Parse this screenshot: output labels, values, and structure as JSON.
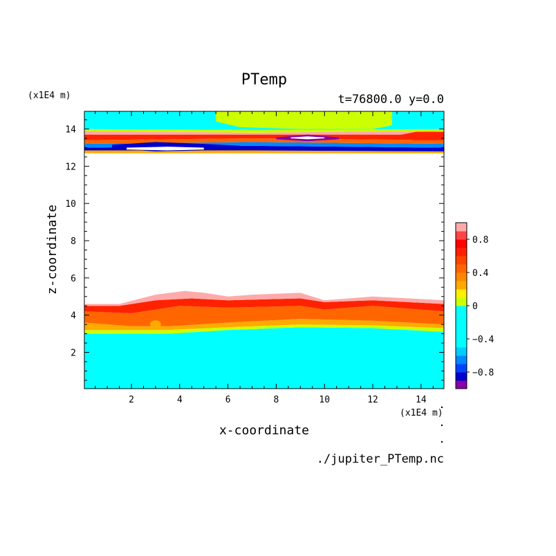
{
  "chart_data": {
    "type": "heatmap",
    "title": "PTemp",
    "subtitle": "t=76800.0 y=0.0",
    "xlabel": "x-coordinate",
    "ylabel": "z-coordinate",
    "x_unit": "(x1E4 m)",
    "y_unit": "(x1E4 m)",
    "xlim": [
      0.05,
      14.95
    ],
    "ylim": [
      0.05,
      14.95
    ],
    "xticks": [
      2,
      4,
      6,
      8,
      10,
      12,
      14
    ],
    "yticks": [
      2,
      4,
      6,
      8,
      10,
      12,
      14
    ],
    "source": "./jupiter_PTemp.nc",
    "colorbar": {
      "ticks": [
        "0.8",
        "0.4",
        "0",
        "−0.4",
        "−0.8"
      ],
      "tick_values": [
        0.8,
        0.4,
        0,
        -0.4,
        -0.8
      ],
      "levels": [
        -1.0,
        -0.9,
        -0.8,
        -0.7,
        -0.6,
        -0.5,
        -0.4,
        -0.3,
        -0.2,
        -0.1,
        0.0,
        0.1,
        0.2,
        0.3,
        0.4,
        0.5,
        0.6,
        0.7,
        0.8,
        0.9,
        1.0
      ],
      "colors": [
        "#8800aa",
        "#0000cc",
        "#0044ff",
        "#0088ff",
        "#00ccff",
        "#00ffff",
        "#00ffff",
        "#00ffff",
        "#00ffff",
        "#00ffff",
        "#ccff00",
        "#ffee00",
        "#ffaa00",
        "#ff8800",
        "#ff6600",
        "#ff4400",
        "#ff2200",
        "#ff0000",
        "#ff4444",
        "#ffaaaa"
      ]
    },
    "regions": [
      {
        "name": "lower-cyan",
        "value": -0.3,
        "color": "#00ffff",
        "lower": [
          [
            0.05,
            0.05
          ],
          [
            14.95,
            0.05
          ]
        ],
        "upper": [
          [
            0.05,
            3.0
          ],
          [
            2,
            3.0
          ],
          [
            3.5,
            3.0
          ],
          [
            6,
            3.2
          ],
          [
            9,
            3.35
          ],
          [
            12,
            3.3
          ],
          [
            14.95,
            3.1
          ]
        ]
      },
      {
        "name": "lower-yellow",
        "value": 0.05,
        "color": "#ccff00",
        "lower": [
          [
            0.05,
            3.0
          ],
          [
            2,
            3.0
          ],
          [
            3.5,
            3.0
          ],
          [
            6,
            3.2
          ],
          [
            9,
            3.35
          ],
          [
            12,
            3.3
          ],
          [
            14.95,
            3.1
          ]
        ],
        "upper": [
          [
            0.05,
            3.2
          ],
          [
            2,
            3.2
          ],
          [
            3.5,
            3.2
          ],
          [
            6,
            3.35
          ],
          [
            9,
            3.5
          ],
          [
            12,
            3.45
          ],
          [
            14.95,
            3.3
          ]
        ]
      },
      {
        "name": "lower-orange",
        "value": 0.4,
        "color": "#ffaa00",
        "lower": [
          [
            0.05,
            3.2
          ],
          [
            2,
            3.2
          ],
          [
            3.5,
            3.2
          ],
          [
            6,
            3.35
          ],
          [
            9,
            3.5
          ],
          [
            12,
            3.45
          ],
          [
            14.95,
            3.3
          ]
        ],
        "upper": [
          [
            0.05,
            3.6
          ],
          [
            2,
            3.4
          ],
          [
            3.5,
            3.4
          ],
          [
            6,
            3.6
          ],
          [
            9,
            3.8
          ],
          [
            12,
            3.7
          ],
          [
            14.95,
            3.5
          ]
        ]
      },
      {
        "name": "lower-darkorange",
        "value": 0.55,
        "color": "#ff6600",
        "lower": [
          [
            0.05,
            3.6
          ],
          [
            2,
            3.4
          ],
          [
            3.5,
            3.4
          ],
          [
            6,
            3.6
          ],
          [
            9,
            3.8
          ],
          [
            12,
            3.7
          ],
          [
            14.95,
            3.5
          ]
        ],
        "upper": [
          [
            0.05,
            4.2
          ],
          [
            2,
            4.1
          ],
          [
            4,
            4.5
          ],
          [
            6,
            4.4
          ],
          [
            9,
            4.5
          ],
          [
            10,
            4.3
          ],
          [
            12,
            4.5
          ],
          [
            14.95,
            4.2
          ]
        ]
      },
      {
        "name": "lower-red",
        "value": 0.8,
        "color": "#ff2200",
        "lower": [
          [
            0.05,
            4.2
          ],
          [
            2,
            4.1
          ],
          [
            4,
            4.5
          ],
          [
            6,
            4.4
          ],
          [
            9,
            4.5
          ],
          [
            10,
            4.3
          ],
          [
            12,
            4.5
          ],
          [
            14.95,
            4.2
          ]
        ],
        "upper": [
          [
            0.05,
            4.5
          ],
          [
            1.5,
            4.5
          ],
          [
            3,
            4.8
          ],
          [
            4.5,
            4.9
          ],
          [
            6,
            4.8
          ],
          [
            9,
            4.9
          ],
          [
            10,
            4.7
          ],
          [
            12,
            4.8
          ],
          [
            14.95,
            4.6
          ]
        ]
      },
      {
        "name": "lower-pink",
        "value": 0.95,
        "color": "#ffaaaa",
        "lower": [
          [
            0.05,
            4.5
          ],
          [
            1.5,
            4.5
          ],
          [
            3,
            4.8
          ],
          [
            4.5,
            4.9
          ],
          [
            6,
            4.8
          ],
          [
            9,
            4.9
          ],
          [
            10,
            4.7
          ],
          [
            12,
            4.8
          ],
          [
            14.95,
            4.6
          ]
        ],
        "upper": [
          [
            0.05,
            4.6
          ],
          [
            1.5,
            4.6
          ],
          [
            3,
            5.1
          ],
          [
            4.2,
            5.3
          ],
          [
            5,
            5.2
          ],
          [
            6,
            5.0
          ],
          [
            7,
            5.1
          ],
          [
            9,
            5.2
          ],
          [
            10,
            4.8
          ],
          [
            12,
            5.0
          ],
          [
            14.95,
            4.8
          ]
        ]
      },
      {
        "name": "upper-band-1",
        "value": 0.4,
        "color": "#ffaa00",
        "lower": [
          [
            0.05,
            12.7
          ],
          [
            14.95,
            12.7
          ]
        ],
        "upper": [
          [
            0.05,
            12.85
          ],
          [
            7,
            12.85
          ],
          [
            14.95,
            12.8
          ]
        ]
      },
      {
        "name": "upper-band-2",
        "value": -0.7,
        "color": "#0000cc",
        "lower": [
          [
            0.05,
            12.85
          ],
          [
            7,
            12.85
          ],
          [
            14.95,
            12.8
          ]
        ],
        "upper": [
          [
            0.05,
            13.0
          ],
          [
            7,
            13.1
          ],
          [
            14.95,
            13.0
          ]
        ]
      },
      {
        "name": "upper-band-3",
        "value": -0.5,
        "color": "#0088ff",
        "lower": [
          [
            0.05,
            13.0
          ],
          [
            7,
            13.1
          ],
          [
            14.95,
            13.0
          ]
        ],
        "upper": [
          [
            0.05,
            13.2
          ],
          [
            7,
            13.3
          ],
          [
            14.95,
            13.2
          ]
        ]
      },
      {
        "name": "upper-band-4",
        "value": 0.6,
        "color": "#ff6600",
        "lower": [
          [
            0.05,
            13.2
          ],
          [
            7,
            13.3
          ],
          [
            14.95,
            13.2
          ]
        ],
        "upper": [
          [
            0.05,
            13.4
          ],
          [
            7,
            13.5
          ],
          [
            14.95,
            13.4
          ]
        ]
      },
      {
        "name": "upper-band-5",
        "value": 0.8,
        "color": "#ff2200",
        "lower": [
          [
            0.05,
            13.4
          ],
          [
            7,
            13.5
          ],
          [
            14.95,
            13.4
          ]
        ],
        "upper": [
          [
            0.05,
            13.7
          ],
          [
            7,
            13.7
          ],
          [
            14.95,
            13.7
          ]
        ]
      },
      {
        "name": "upper-band-6",
        "value": 0.95,
        "color": "#ffaaaa",
        "lower": [
          [
            0.05,
            13.7
          ],
          [
            7,
            13.7
          ],
          [
            14.95,
            13.7
          ]
        ],
        "upper": [
          [
            0.05,
            13.9
          ],
          [
            7,
            13.8
          ],
          [
            14.95,
            13.9
          ]
        ]
      },
      {
        "name": "upper-band-7",
        "value": 0.05,
        "color": "#ccff00",
        "lower": [
          [
            0.05,
            13.9
          ],
          [
            7,
            13.8
          ],
          [
            14.95,
            13.9
          ]
        ],
        "upper": [
          [
            0.05,
            14.0
          ],
          [
            7,
            13.95
          ],
          [
            14.95,
            14.0
          ]
        ]
      },
      {
        "name": "upper-cyan",
        "value": -0.3,
        "color": "#00ffff",
        "lower": [
          [
            0.05,
            14.0
          ],
          [
            7,
            13.95
          ],
          [
            14.95,
            14.0
          ]
        ],
        "upper": [
          [
            0.05,
            14.95
          ],
          [
            14.95,
            14.95
          ]
        ]
      },
      {
        "name": "upper-yellow-patch",
        "value": 0.05,
        "color": "#ccff00",
        "lower": [
          [
            5.5,
            14.4
          ],
          [
            6.5,
            14.1
          ],
          [
            9,
            14.0
          ],
          [
            12,
            14.0
          ],
          [
            12.8,
            14.2
          ]
        ],
        "upper": [
          [
            5.5,
            14.95
          ],
          [
            12.8,
            14.95
          ]
        ]
      },
      {
        "name": "upper-deep-blue",
        "value": -0.8,
        "color": "#0000cc",
        "lower": [
          [
            1.2,
            12.95
          ],
          [
            3,
            12.8
          ],
          [
            5,
            12.85
          ],
          [
            6.5,
            13.0
          ]
        ],
        "upper": [
          [
            1.2,
            13.15
          ],
          [
            3,
            13.3
          ],
          [
            5,
            13.2
          ],
          [
            6.5,
            13.1
          ]
        ]
      },
      {
        "name": "upper-white-1",
        "value": -1.0,
        "color": "#ffffff",
        "lower": [
          [
            1.8,
            12.9
          ],
          [
            3.5,
            12.85
          ],
          [
            5,
            12.9
          ]
        ],
        "upper": [
          [
            1.8,
            13.0
          ],
          [
            3.5,
            13.05
          ],
          [
            5,
            13.0
          ]
        ]
      },
      {
        "name": "upper-purple",
        "value": -0.95,
        "color": "#8800aa",
        "lower": [
          [
            8,
            13.45
          ],
          [
            9.3,
            13.35
          ],
          [
            10.6,
            13.45
          ]
        ],
        "upper": [
          [
            8,
            13.55
          ],
          [
            9.3,
            13.7
          ],
          [
            10.6,
            13.55
          ]
        ]
      },
      {
        "name": "upper-white-2",
        "value": -1.0,
        "color": "#ffffff",
        "lower": [
          [
            8.6,
            13.5
          ],
          [
            9.3,
            13.45
          ],
          [
            10.0,
            13.5
          ]
        ],
        "upper": [
          [
            8.6,
            13.55
          ],
          [
            9.3,
            13.6
          ],
          [
            10.0,
            13.55
          ]
        ]
      },
      {
        "name": "upper-right-red",
        "value": 0.8,
        "color": "#ff2200",
        "lower": [
          [
            12.8,
            13.5
          ],
          [
            13.8,
            13.4
          ],
          [
            14.95,
            13.4
          ]
        ],
        "upper": [
          [
            12.8,
            13.6
          ],
          [
            13.8,
            13.85
          ],
          [
            14.95,
            13.85
          ]
        ]
      }
    ]
  }
}
